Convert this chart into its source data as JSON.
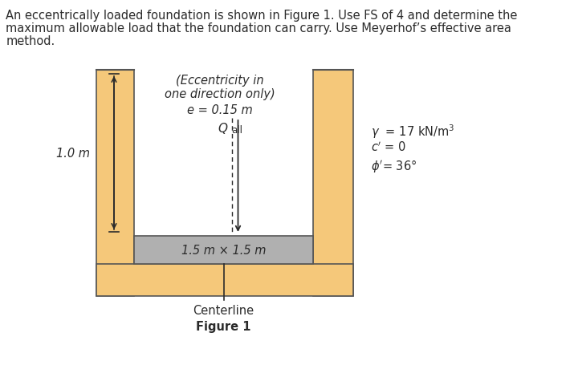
{
  "background_color": "#ffffff",
  "soil_color": "#f5c87a",
  "foundation_color": "#b0b0b0",
  "text_color": "#2b2b2b",
  "header_line1": "An eccentrically loaded foundation is shown in Figure 1. Use FS of 4 and determine the",
  "header_line2": "maximum allowable load that the foundation can carry. Use Meyerhof’s effective area",
  "header_line3": "method.",
  "ecc_note1": "(Eccentricity in",
  "ecc_note2": "one direction only)",
  "ecc_label": "e = 0.15 m",
  "depth_label": "1.0 m",
  "foundation_dim_label": "1.5 m × 1.5 m",
  "centerline_label": "Centerline",
  "figure_label": "Figure 1",
  "gamma_label": "γ  = 17 kN/m³",
  "c_prime_label": "c′ = 0",
  "phi_prime_label": "ϕ′= 36°",
  "edge_color": "#555555",
  "fig_width": 7.15,
  "fig_height": 4.56,
  "dpi": 100
}
